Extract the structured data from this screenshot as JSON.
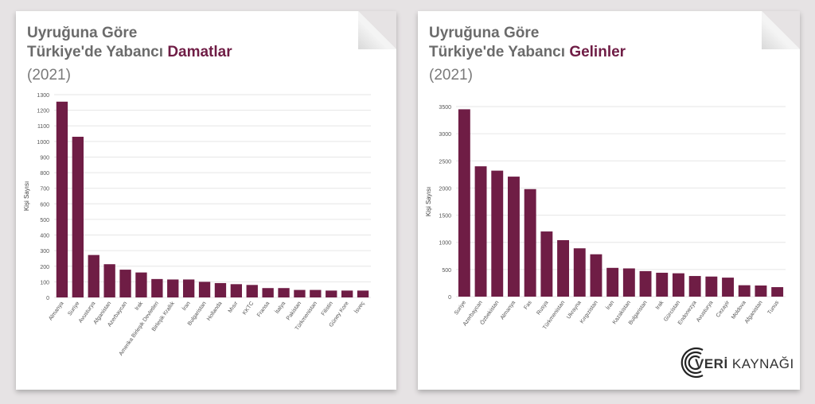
{
  "left": {
    "title_line1": "Uyruğuna Göre",
    "title_line2_prefix": "Türkiye'de Yabancı ",
    "title_highlight": "Damatlar",
    "year": "(2021)"
  },
  "right": {
    "title_line1": "Uyruğuna Göre",
    "title_line2_prefix": "Türkiye'de Yabancı ",
    "title_highlight": "Gelinler",
    "year": "(2021)"
  },
  "logo": {
    "bold": "VERİ",
    "rest": " KAYNAĞI"
  },
  "colors": {
    "bar": "#6f1d45",
    "grid": "#e6e6e6",
    "title": "#6b6b6b"
  },
  "chart_data": [
    {
      "type": "bar",
      "ylabel": "Kişi Sayısı",
      "ylim": [
        0,
        1300
      ],
      "yticks": [
        0,
        100,
        200,
        300,
        400,
        500,
        600,
        700,
        800,
        900,
        1000,
        1100,
        1200,
        1300
      ],
      "categories": [
        "Almanya",
        "Suriye",
        "Avusturya",
        "Afganistan",
        "Azerbaycan",
        "Irak",
        "Amerika Birleşik Devletleri",
        "Birleşik Krallık",
        "İran",
        "Bulgaristan",
        "Hollanda",
        "Mısır",
        "KKTC",
        "Fransa",
        "İtalya",
        "Pakistan",
        "Türkmenistan",
        "Filistin",
        "Güney Kore",
        "İsveç"
      ],
      "values": [
        1255,
        1030,
        272,
        213,
        178,
        160,
        118,
        115,
        115,
        100,
        92,
        85,
        80,
        60,
        60,
        48,
        48,
        44,
        44,
        44
      ],
      "grid": true
    },
    {
      "type": "bar",
      "ylabel": "Kişi Sayısı",
      "ylim": [
        0,
        3500
      ],
      "yticks": [
        0,
        500,
        1000,
        1500,
        2000,
        2500,
        3000,
        3500
      ],
      "categories": [
        "Suriye",
        "Azerbaycan",
        "Özbekistan",
        "Almanya",
        "Fas",
        "Rusya",
        "Türkmenistan",
        "Ukrayna",
        "Kırgızistan",
        "İran",
        "Kazakistan",
        "Bulgaristan",
        "Irak",
        "Gürcistan",
        "Endonezya",
        "Avusturya",
        "Cezayir",
        "Moldova",
        "Afganistan",
        "Tunus"
      ],
      "values": [
        3450,
        2400,
        2320,
        2210,
        1980,
        1200,
        1040,
        890,
        780,
        530,
        520,
        470,
        440,
        430,
        380,
        370,
        350,
        210,
        205,
        175
      ],
      "grid": true
    }
  ]
}
